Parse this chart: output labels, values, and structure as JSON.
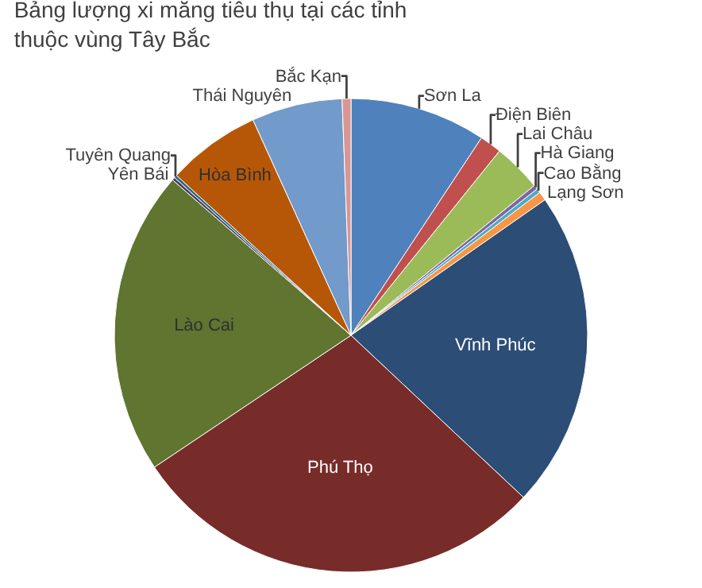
{
  "chart_data": {
    "type": "pie",
    "title": "Bảng lượng xi măng tiêu thụ tại các tỉnh thuộc vùng Tây Bắc",
    "categories": [
      "Sơn La",
      "Điện Biên",
      "Lai Châu",
      "Hà Giang",
      "Cao Bằng",
      "Lạng Sơn",
      "Vĩnh Phúc",
      "Phú Thọ",
      "Lào Cai",
      "Yên Bái",
      "Tuyên Quang",
      "Hòa Bình",
      "Thái Nguyên",
      "Bắc Kạn"
    ],
    "values": [
      9.3,
      1.5,
      3.3,
      0.3,
      0.3,
      0.6,
      21.7,
      28.6,
      20.8,
      0.2,
      0.2,
      6.4,
      6.2,
      0.6
    ],
    "colors": [
      "#4f81bd",
      "#c0504d",
      "#9bbb59",
      "#8064a2",
      "#4bacc6",
      "#f79646",
      "#2c4d75",
      "#772c2a",
      "#5f7530",
      "#4d3b62",
      "#276a7c",
      "#b65708",
      "#729aca",
      "#d99694"
    ]
  }
}
